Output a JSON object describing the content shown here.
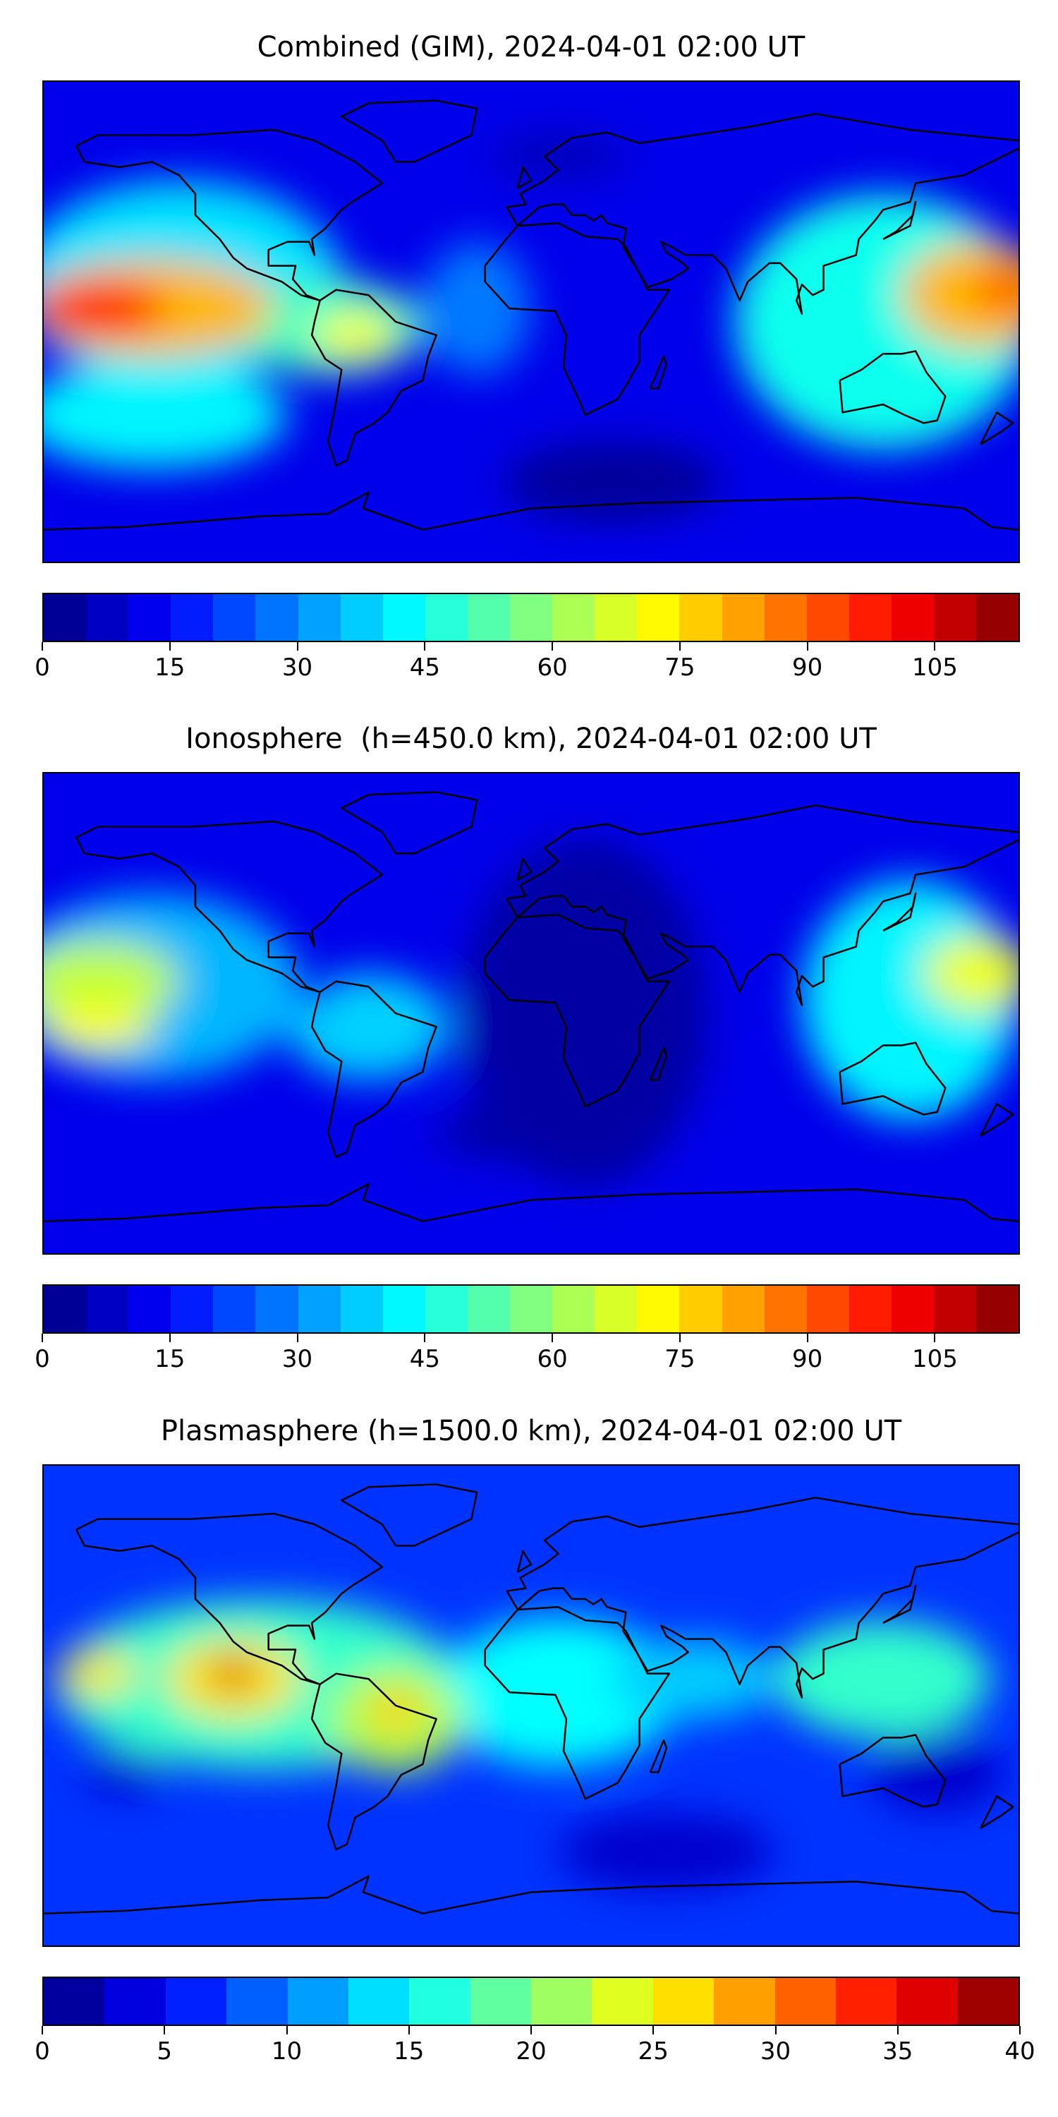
{
  "chart_data": [
    {
      "type": "heatmap",
      "title": "Combined (GIM), 2024-04-01 02:00 UT",
      "vmin": 0,
      "vmax": 115,
      "level_step": 5,
      "ticks": [
        "0",
        "15",
        "30",
        "45",
        "60",
        "75",
        "90",
        "105"
      ],
      "tick_values": [
        0,
        15,
        30,
        45,
        60,
        75,
        90,
        105
      ],
      "base_value": 12,
      "field_features": [
        {
          "lon": -130,
          "lat": 15,
          "rx": 60,
          "ry": 38,
          "v": 40
        },
        {
          "lon": -140,
          "lat": -35,
          "rx": 50,
          "ry": 20,
          "v": 42
        },
        {
          "lon": -75,
          "lat": -2,
          "rx": 35,
          "ry": 18,
          "v": 50
        },
        {
          "lon": -20,
          "lat": 5,
          "rx": 20,
          "ry": 25,
          "v": 28
        },
        {
          "lon": 130,
          "lat": 0,
          "rx": 55,
          "ry": 48,
          "v": 45
        },
        {
          "lon": -140,
          "lat": 5,
          "rx": 45,
          "ry": 18,
          "v": 80
        },
        {
          "lon": -65,
          "lat": -5,
          "rx": 15,
          "ry": 8,
          "v": 72
        },
        {
          "lon": 165,
          "lat": 10,
          "rx": 28,
          "ry": 20,
          "v": 80
        },
        {
          "lon": -160,
          "lat": 5,
          "rx": 25,
          "ry": 10,
          "v": 100
        },
        {
          "lon": 175,
          "lat": 12,
          "rx": 10,
          "ry": 8,
          "v": 95
        },
        {
          "lon": 30,
          "lat": -60,
          "rx": 40,
          "ry": 15,
          "v": 3
        },
        {
          "lon": 10,
          "lat": 62,
          "rx": 25,
          "ry": 8,
          "v": 6
        }
      ]
    },
    {
      "type": "heatmap",
      "title": "Ionosphere  (h=450.0 km), 2024-04-01 02:00 UT",
      "vmin": 0,
      "vmax": 115,
      "level_step": 5,
      "ticks": [
        "0",
        "15",
        "30",
        "45",
        "60",
        "75",
        "90",
        "105"
      ],
      "tick_values": [
        0,
        15,
        30,
        45,
        60,
        75,
        90,
        105
      ],
      "base_value": 12,
      "field_features": [
        {
          "lon": 20,
          "lat": 0,
          "rx": 45,
          "ry": 65,
          "v": 4
        },
        {
          "lon": 0,
          "lat": -45,
          "rx": 35,
          "ry": 10,
          "v": 4
        },
        {
          "lon": -140,
          "lat": 10,
          "rx": 55,
          "ry": 35,
          "v": 35
        },
        {
          "lon": -60,
          "lat": -5,
          "rx": 30,
          "ry": 20,
          "v": 38
        },
        {
          "lon": 140,
          "lat": 5,
          "rx": 40,
          "ry": 45,
          "v": 42
        },
        {
          "lon": -160,
          "lat": 12,
          "rx": 30,
          "ry": 15,
          "v": 65
        },
        {
          "lon": -160,
          "lat": -5,
          "rx": 20,
          "ry": 8,
          "v": 72
        },
        {
          "lon": 165,
          "lat": 15,
          "rx": 20,
          "ry": 14,
          "v": 70
        },
        {
          "lon": -80,
          "lat": 5,
          "rx": 6,
          "ry": 4,
          "v": 15
        }
      ]
    },
    {
      "type": "heatmap",
      "title": "Plasmasphere (h=1500.0 km), 2024-04-01 02:00 UT",
      "vmin": 0,
      "vmax": 40,
      "level_step": 2.5,
      "ticks": [
        "0",
        "5",
        "10",
        "15",
        "20",
        "25",
        "30",
        "35",
        "40"
      ],
      "tick_values": [
        0,
        5,
        10,
        15,
        20,
        25,
        30,
        35,
        40
      ],
      "base_value": 7,
      "field_features": [
        {
          "lon": -100,
          "lat": 8,
          "rx": 75,
          "ry": 32,
          "v": 17
        },
        {
          "lon": 10,
          "lat": 5,
          "rx": 45,
          "ry": 28,
          "v": 15
        },
        {
          "lon": 130,
          "lat": 10,
          "rx": 40,
          "ry": 22,
          "v": 17
        },
        {
          "lon": 60,
          "lat": 10,
          "rx": 30,
          "ry": 15,
          "v": 13
        },
        {
          "lon": -50,
          "lat": -5,
          "rx": 25,
          "ry": 20,
          "v": 22
        },
        {
          "lon": -110,
          "lat": 10,
          "rx": 25,
          "ry": 15,
          "v": 26
        },
        {
          "lon": -160,
          "lat": 12,
          "rx": 15,
          "ry": 8,
          "v": 26
        },
        {
          "lon": -50,
          "lat": -2,
          "rx": 10,
          "ry": 8,
          "v": 27
        },
        {
          "lon": -110,
          "lat": 12,
          "rx": 8,
          "ry": 6,
          "v": 37
        },
        {
          "lon": 150,
          "lat": -25,
          "rx": 25,
          "ry": 15,
          "v": 3
        },
        {
          "lon": 50,
          "lat": -55,
          "rx": 40,
          "ry": 15,
          "v": 3
        },
        {
          "lon": -150,
          "lat": -25,
          "rx": 15,
          "ry": 8,
          "v": 3
        }
      ]
    }
  ]
}
